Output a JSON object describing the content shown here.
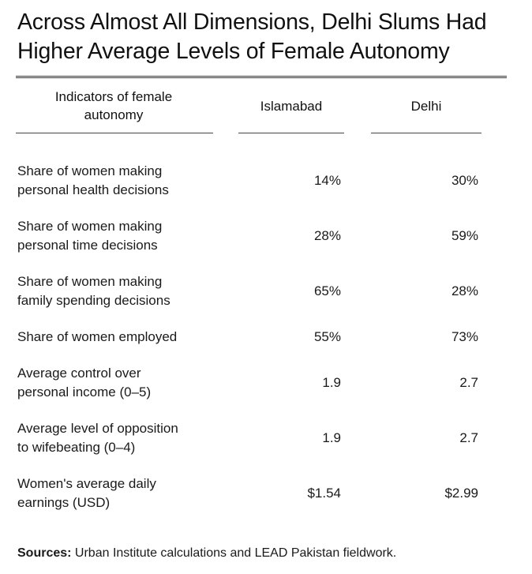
{
  "chart_data": {
    "type": "table",
    "title_lines": [
      "Across Almost All Dimensions, Delhi Slums Had",
      "Higher Average Levels of Female Autonomy"
    ],
    "columns": {
      "indicator_lines": [
        "Indicators of female",
        "autonomy"
      ],
      "islamabad": "Islamabad",
      "delhi": "Delhi"
    },
    "rows": [
      {
        "label_lines": [
          "Share of women making",
          "personal health decisions"
        ],
        "islamabad": "14%",
        "delhi": "30%"
      },
      {
        "label_lines": [
          "Share of women making",
          "personal time decisions"
        ],
        "islamabad": "28%",
        "delhi": "59%"
      },
      {
        "label_lines": [
          "Share of women making",
          "family spending decisions"
        ],
        "islamabad": "65%",
        "delhi": "28%"
      },
      {
        "label_lines": [
          "Share of women employed"
        ],
        "islamabad": "55%",
        "delhi": "73%"
      },
      {
        "label_lines": [
          "Average control over",
          "personal income (0–5)"
        ],
        "islamabad": "1.9",
        "delhi": "2.7"
      },
      {
        "label_lines": [
          "Average level of opposition",
          "to wifebeating (0–4)"
        ],
        "islamabad": "1.9",
        "delhi": "2.7"
      },
      {
        "label_lines": [
          "Women's average daily",
          "earnings (USD)"
        ],
        "islamabad": "$1.54",
        "delhi": "$2.99"
      }
    ],
    "source_label": "Sources:",
    "source_text": " Urban Institute calculations and LEAD Pakistan fieldwork."
  }
}
